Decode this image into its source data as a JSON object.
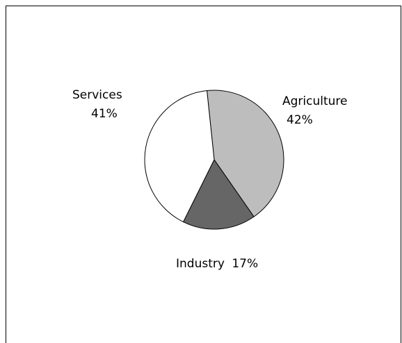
{
  "chart_data": {
    "type": "pie",
    "title": "",
    "slices": [
      {
        "label": "Agriculture",
        "value": 42,
        "pct_text": "42%",
        "color": "#bdbdbd"
      },
      {
        "label": "Industry",
        "value": 17,
        "pct_text": "17%",
        "color": "#666666"
      },
      {
        "label": "Services",
        "value": 41,
        "pct_text": "41%",
        "color": "#ffffff"
      }
    ],
    "legend": "none",
    "start_angle_deg": -6
  }
}
